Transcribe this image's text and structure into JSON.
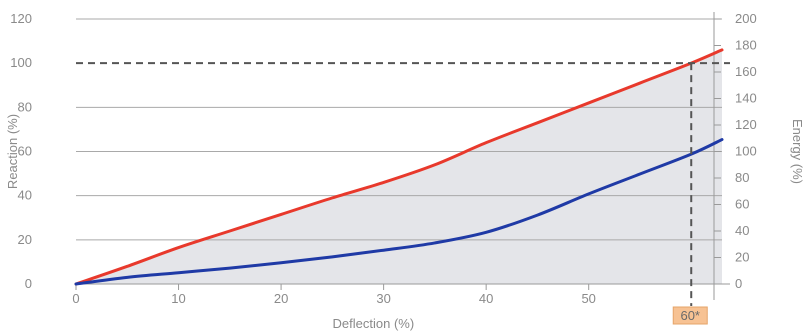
{
  "chart_data": {
    "type": "line",
    "xlabel": "Deflection (%)",
    "ylabel_left": "Reaction (%)",
    "ylabel_right": "Energy (%)",
    "x_ticks": [
      0,
      10,
      20,
      30,
      40,
      50
    ],
    "y_left_ticks": [
      0,
      20,
      40,
      60,
      80,
      100,
      120
    ],
    "y_right_ticks": [
      0,
      20,
      40,
      60,
      80,
      100,
      120,
      140,
      160,
      180,
      200
    ],
    "xlim": [
      0,
      63
    ],
    "ylim_left": [
      0,
      120
    ],
    "ylim_right": [
      0,
      200
    ],
    "grid": "horizontal",
    "reference_line": {
      "reaction": 100,
      "deflection": 60
    },
    "marker_label": "60*",
    "series": [
      {
        "axis": "left",
        "color": "#e8392c",
        "points": [
          [
            0,
            0
          ],
          [
            5,
            8
          ],
          [
            10,
            16.5
          ],
          [
            15,
            24
          ],
          [
            20,
            31.5
          ],
          [
            25,
            39
          ],
          [
            30,
            46
          ],
          [
            35,
            54
          ],
          [
            40,
            64
          ],
          [
            45,
            73
          ],
          [
            50,
            82
          ],
          [
            55,
            91
          ],
          [
            60,
            100
          ],
          [
            63,
            106
          ]
        ]
      },
      {
        "axis": "right",
        "color": "#1f3aa6",
        "fill_color": "#e4e5e9",
        "points": [
          [
            0,
            0
          ],
          [
            5,
            5
          ],
          [
            10,
            8.5
          ],
          [
            15,
            12
          ],
          [
            20,
            16
          ],
          [
            25,
            20.5
          ],
          [
            30,
            25.5
          ],
          [
            35,
            31
          ],
          [
            40,
            39
          ],
          [
            45,
            52
          ],
          [
            50,
            68
          ],
          [
            55,
            83
          ],
          [
            60,
            98
          ],
          [
            63,
            109
          ]
        ]
      }
    ]
  }
}
